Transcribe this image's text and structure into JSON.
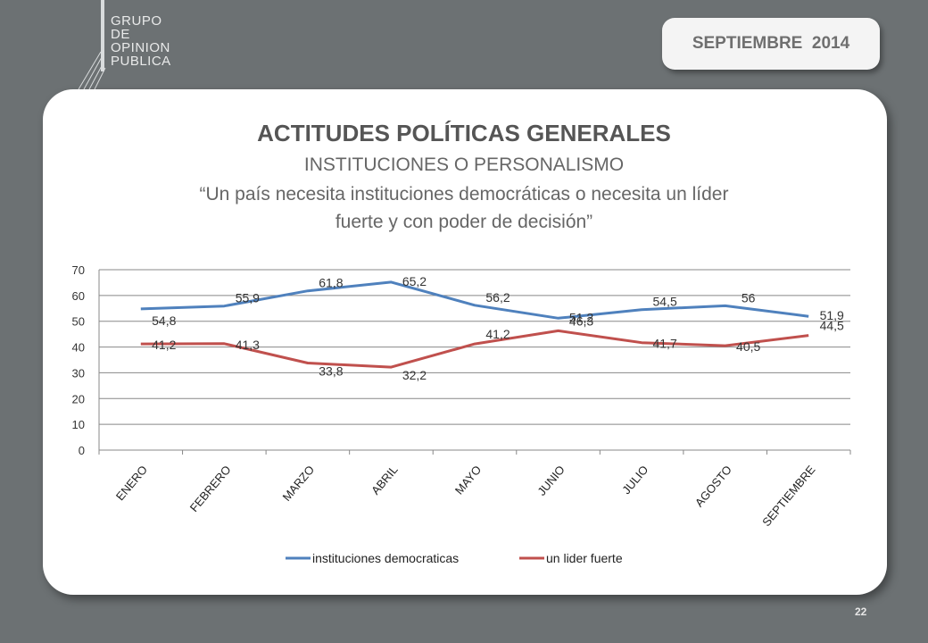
{
  "header": {
    "logo_lines": [
      "GRUPO",
      "DE",
      "OPINION",
      "PUBLICA"
    ],
    "date": "SEPTIEMBRE  2014"
  },
  "slide": {
    "title": "ACTITUDES POLÍTICAS GENERALES",
    "subtitle": "INSTITUCIONES O PERSONALISMO",
    "question_line1": "“Un país necesita instituciones democráticas o necesita un líder",
    "question_line2": "fuerte y con poder de decisión”",
    "page_number": "22"
  },
  "chart_data": {
    "type": "line",
    "categories": [
      "ENERO",
      "FEBRERO",
      "MARZO",
      "ABRIL",
      "MAYO",
      "JUNIO",
      "JULIO",
      "AGOSTO",
      "SEPTIEMBRE"
    ],
    "series": [
      {
        "name": "instituciones democraticas",
        "color": "#4f81bd",
        "values": [
          54.8,
          55.9,
          61.8,
          65.2,
          56.2,
          51.2,
          54.5,
          56,
          51.9
        ],
        "labels": [
          "54,8",
          "55,9",
          "61,8",
          "65,2",
          "56,2",
          "51,2",
          "54,5",
          "56",
          "51,9"
        ]
      },
      {
        "name": "un lider fuerte",
        "color": "#c0504d",
        "values": [
          41.2,
          41.3,
          33.8,
          32.2,
          41.2,
          46.3,
          41.7,
          40.5,
          44.5
        ],
        "labels": [
          "41,2",
          "41,3",
          "33,8",
          "32,2",
          "41,2",
          "46,3",
          "41,7",
          "40,5",
          "44,5"
        ]
      }
    ],
    "ylim": [
      0,
      70
    ],
    "yticks": [
      0,
      10,
      20,
      30,
      40,
      50,
      60,
      70
    ],
    "grid": true,
    "legend_position": "bottom",
    "xlabel": "",
    "ylabel": ""
  }
}
